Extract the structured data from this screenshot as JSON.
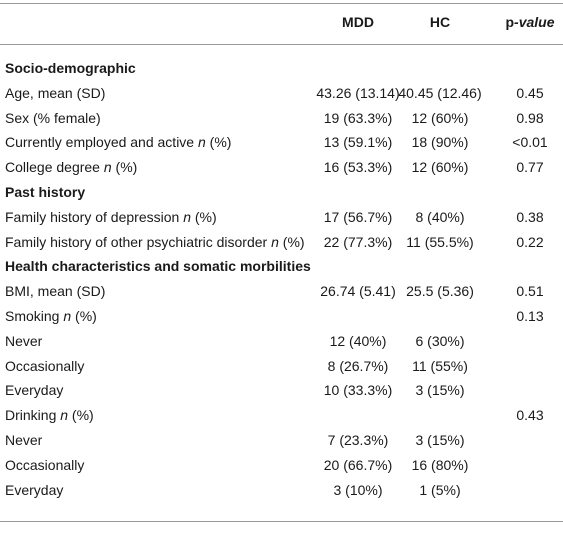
{
  "table": {
    "header": {
      "mdd": "MDD",
      "hc": "HC",
      "p": [
        "p",
        "-value"
      ]
    },
    "rows": [
      {
        "section": "Socio-demographic"
      },
      {
        "label": [
          "Age, mean (SD)"
        ],
        "mdd": "43.26 (13.14)",
        "hc": "40.45 (12.46)",
        "p": "0.45"
      },
      {
        "label": [
          "Sex (% female)"
        ],
        "mdd": "19 (63.3%)",
        "hc": "12 (60%)",
        "p": "0.98"
      },
      {
        "label": [
          "Currently employed and active ",
          "n",
          " (%)"
        ],
        "mdd": "13 (59.1%)",
        "hc": "18 (90%)",
        "p": "<0.01"
      },
      {
        "label": [
          "College degree ",
          "n",
          " (%)"
        ],
        "mdd": "16 (53.3%)",
        "hc": "12 (60%)",
        "p": "0.77"
      },
      {
        "section": "Past history"
      },
      {
        "label": [
          "Family history of depression ",
          "n",
          " (%)"
        ],
        "mdd": "17 (56.7%)",
        "hc": "8 (40%)",
        "p": "0.38"
      },
      {
        "label": [
          "Family history of other psychiatric disorder ",
          "n",
          " (%)"
        ],
        "mdd": "22 (77.3%)",
        "hc": "11 (55.5%)",
        "p": "0.22"
      },
      {
        "section": "Health characteristics and somatic morbilities"
      },
      {
        "label": [
          "BMI, mean (SD)"
        ],
        "mdd": "26.74 (5.41)",
        "hc": "25.5 (5.36)",
        "p": "0.51"
      },
      {
        "label": [
          "Smoking ",
          "n",
          " (%)"
        ],
        "p": "0.13"
      },
      {
        "label": [
          "Never"
        ],
        "mdd": "12 (40%)",
        "hc": "6 (30%)"
      },
      {
        "label": [
          "Occasionally"
        ],
        "mdd": "8 (26.7%)",
        "hc": "11 (55%)"
      },
      {
        "label": [
          "Everyday"
        ],
        "mdd": "10 (33.3%)",
        "hc": "3 (15%)"
      },
      {
        "label": [
          "Drinking ",
          "n",
          " (%)"
        ],
        "p": "0.43"
      },
      {
        "label": [
          "Never"
        ],
        "mdd": "7 (23.3%)",
        "hc": "3 (15%)"
      },
      {
        "label": [
          "Occasionally"
        ],
        "mdd": "20 (66.7%)",
        "hc": "16 (80%)"
      },
      {
        "label": [
          "Everyday"
        ],
        "mdd": "3 (10%)",
        "hc": "1 (5%)"
      }
    ]
  }
}
